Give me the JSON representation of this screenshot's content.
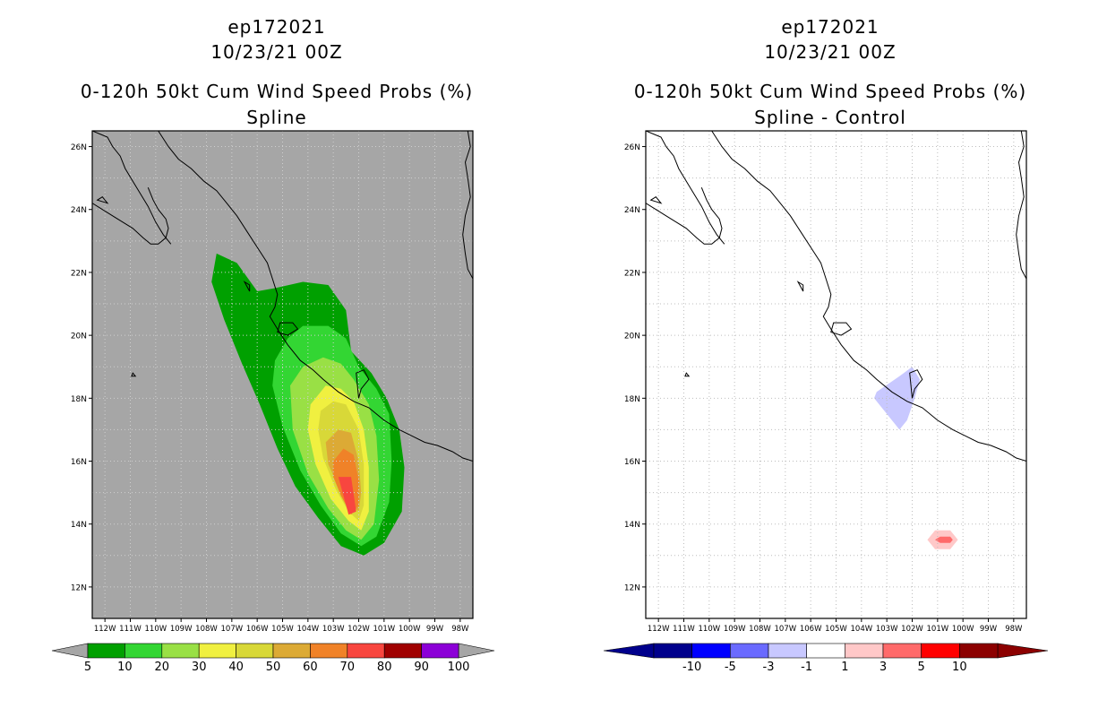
{
  "left_panel": {
    "title_line1": "ep172021",
    "title_line2": "10/23/21 00Z",
    "title_line3": "0-120h 50kt Cum Wind Speed Probs (%)",
    "subtitle": "Spline",
    "background": "#a6a6a6"
  },
  "right_panel": {
    "title_line1": "ep172021",
    "title_line2": "10/23/21 00Z",
    "title_line3": "0-120h 50kt Cum Wind Speed Probs (%)",
    "subtitle": "Spline - Control",
    "background": "#ffffff"
  },
  "chart_data": [
    {
      "type": "heatmap",
      "title": "0-120h 50kt Cum Wind Speed Probs (%)",
      "subtitle": "Spline",
      "xlabel": "",
      "ylabel": "",
      "xlim": [
        -112.5,
        -97.5
      ],
      "ylim": [
        11,
        26.5
      ],
      "x_ticks": [
        "112W",
        "111W",
        "110W",
        "109W",
        "108W",
        "107W",
        "106W",
        "105W",
        "104W",
        "103W",
        "102W",
        "101W",
        "100W",
        "99W",
        "98W"
      ],
      "y_ticks": [
        "12N",
        "14N",
        "16N",
        "18N",
        "20N",
        "22N",
        "24N",
        "26N"
      ],
      "colorbar": {
        "labels": [
          "5",
          "10",
          "20",
          "30",
          "40",
          "50",
          "60",
          "70",
          "80",
          "90",
          "100"
        ],
        "colors": [
          "#00a000",
          "#33d633",
          "#99e045",
          "#f0f040",
          "#d8d838",
          "#dcaa35",
          "#f08228",
          "#f8463f",
          "#a00000",
          "#8c00d7"
        ]
      },
      "contours": [
        {
          "level": 5,
          "color": "#00a000",
          "poly": [
            [
              -107.6,
              22.6
            ],
            [
              -106.8,
              22.3
            ],
            [
              -106.0,
              21.4
            ],
            [
              -105.3,
              21.5
            ],
            [
              -104.2,
              21.7
            ],
            [
              -103.2,
              21.6
            ],
            [
              -102.5,
              20.8
            ],
            [
              -102.3,
              19.5
            ],
            [
              -101.5,
              18.8
            ],
            [
              -100.9,
              18.0
            ],
            [
              -100.4,
              17.0
            ],
            [
              -100.2,
              15.8
            ],
            [
              -100.3,
              14.4
            ],
            [
              -101.0,
              13.4
            ],
            [
              -101.8,
              13.0
            ],
            [
              -102.7,
              13.3
            ],
            [
              -103.6,
              14.2
            ],
            [
              -104.5,
              15.2
            ],
            [
              -105.2,
              16.4
            ],
            [
              -105.9,
              17.8
            ],
            [
              -106.6,
              19.1
            ],
            [
              -107.3,
              20.5
            ],
            [
              -107.8,
              21.7
            ]
          ]
        },
        {
          "level": 10,
          "color": "#33d633",
          "poly": [
            [
              -105.3,
              19.2
            ],
            [
              -104.8,
              19.9
            ],
            [
              -104.2,
              20.3
            ],
            [
              -103.2,
              20.3
            ],
            [
              -102.5,
              19.9
            ],
            [
              -102.0,
              19.0
            ],
            [
              -101.3,
              18.3
            ],
            [
              -100.8,
              17.5
            ],
            [
              -100.7,
              16.0
            ],
            [
              -100.8,
              14.7
            ],
            [
              -101.3,
              13.6
            ],
            [
              -101.9,
              13.3
            ],
            [
              -102.7,
              13.7
            ],
            [
              -103.5,
              14.6
            ],
            [
              -104.3,
              15.7
            ],
            [
              -105.0,
              17.1
            ],
            [
              -105.4,
              18.4
            ]
          ]
        },
        {
          "level": 20,
          "color": "#99e045",
          "poly": [
            [
              -104.7,
              18.4
            ],
            [
              -104.2,
              19.0
            ],
            [
              -103.4,
              19.3
            ],
            [
              -102.7,
              19.1
            ],
            [
              -102.2,
              18.6
            ],
            [
              -101.6,
              17.8
            ],
            [
              -101.3,
              16.8
            ],
            [
              -101.2,
              15.4
            ],
            [
              -101.4,
              14.0
            ],
            [
              -101.9,
              13.5
            ],
            [
              -102.5,
              13.8
            ],
            [
              -103.2,
              14.5
            ],
            [
              -104.0,
              15.6
            ],
            [
              -104.6,
              17.0
            ]
          ]
        },
        {
          "level": 30,
          "color": "#f0f040",
          "poly": [
            [
              -103.9,
              17.8
            ],
            [
              -103.3,
              18.4
            ],
            [
              -102.7,
              18.3
            ],
            [
              -102.2,
              17.9
            ],
            [
              -101.8,
              17.0
            ],
            [
              -101.6,
              15.8
            ],
            [
              -101.6,
              14.4
            ],
            [
              -101.9,
              13.8
            ],
            [
              -102.4,
              14.1
            ],
            [
              -103.1,
              14.8
            ],
            [
              -103.7,
              15.9
            ],
            [
              -104.0,
              17.0
            ]
          ]
        },
        {
          "level": 40,
          "color": "#d8d838",
          "poly": [
            [
              -103.5,
              17.6
            ],
            [
              -103.0,
              17.9
            ],
            [
              -102.5,
              17.8
            ],
            [
              -102.0,
              17.0
            ],
            [
              -101.8,
              15.9
            ],
            [
              -101.8,
              14.6
            ],
            [
              -102.0,
              14.1
            ],
            [
              -102.4,
              14.4
            ],
            [
              -102.9,
              15.1
            ],
            [
              -103.4,
              16.1
            ],
            [
              -103.6,
              17.0
            ]
          ]
        },
        {
          "level": 50,
          "color": "#dcaa35",
          "poly": [
            [
              -103.3,
              16.6
            ],
            [
              -102.8,
              17.0
            ],
            [
              -102.3,
              16.9
            ],
            [
              -102.0,
              16.0
            ],
            [
              -101.9,
              15.0
            ],
            [
              -102.0,
              14.4
            ],
            [
              -102.3,
              14.6
            ],
            [
              -102.8,
              15.2
            ],
            [
              -103.2,
              15.9
            ]
          ]
        },
        {
          "level": 60,
          "color": "#f08228",
          "poly": [
            [
              -103.0,
              16.0
            ],
            [
              -102.6,
              16.4
            ],
            [
              -102.2,
              16.2
            ],
            [
              -102.0,
              15.4
            ],
            [
              -102.0,
              14.6
            ],
            [
              -102.3,
              14.3
            ],
            [
              -102.7,
              14.9
            ],
            [
              -103.0,
              15.5
            ]
          ]
        },
        {
          "level": 70,
          "color": "#f8463f",
          "poly": [
            [
              -102.8,
              15.5
            ],
            [
              -102.3,
              15.5
            ],
            [
              -102.1,
              14.4
            ],
            [
              -102.4,
              14.3
            ]
          ]
        }
      ]
    },
    {
      "type": "heatmap",
      "title": "0-120h 50kt Cum Wind Speed Probs (%)",
      "subtitle": "Spline - Control",
      "xlabel": "",
      "ylabel": "",
      "xlim": [
        -112.5,
        -97.5
      ],
      "ylim": [
        11,
        26.5
      ],
      "x_ticks": [
        "112W",
        "111W",
        "110W",
        "109W",
        "108W",
        "107W",
        "106W",
        "105W",
        "104W",
        "103W",
        "102W",
        "101W",
        "100W",
        "99W",
        "98W"
      ],
      "y_ticks": [
        "12N",
        "14N",
        "16N",
        "18N",
        "20N",
        "22N",
        "24N",
        "26N"
      ],
      "colorbar": {
        "labels": [
          "-10",
          "-5",
          "-3",
          "-1",
          "1",
          "3",
          "5",
          "10"
        ],
        "colors": [
          "#00008c",
          "#0000ff",
          "#6a6aff",
          "#c8c8ff",
          "#ffffff",
          "#ffc8c8",
          "#ff6a6a",
          "#ff0000",
          "#8c0000"
        ]
      },
      "contours": [
        {
          "level": -3,
          "color": "#c8c8ff",
          "poly": [
            [
              -103.4,
              18.2
            ],
            [
              -102.5,
              18.7
            ],
            [
              -102.0,
              19.0
            ],
            [
              -101.7,
              18.6
            ],
            [
              -101.9,
              18.0
            ],
            [
              -102.2,
              17.3
            ],
            [
              -102.5,
              17.0
            ],
            [
              -103.0,
              17.5
            ],
            [
              -103.5,
              18.0
            ]
          ]
        },
        {
          "level": 1,
          "color": "#ffc8c8",
          "poly": [
            [
              -101.4,
              13.5
            ],
            [
              -101.1,
              13.8
            ],
            [
              -100.5,
              13.8
            ],
            [
              -100.2,
              13.5
            ],
            [
              -100.5,
              13.2
            ],
            [
              -101.1,
              13.2
            ]
          ]
        },
        {
          "level": 3,
          "color": "#ff6a6a",
          "poly": [
            [
              -101.1,
              13.5
            ],
            [
              -100.9,
              13.6
            ],
            [
              -100.5,
              13.6
            ],
            [
              -100.4,
              13.5
            ],
            [
              -100.5,
              13.4
            ],
            [
              -100.9,
              13.4
            ]
          ]
        }
      ]
    }
  ]
}
